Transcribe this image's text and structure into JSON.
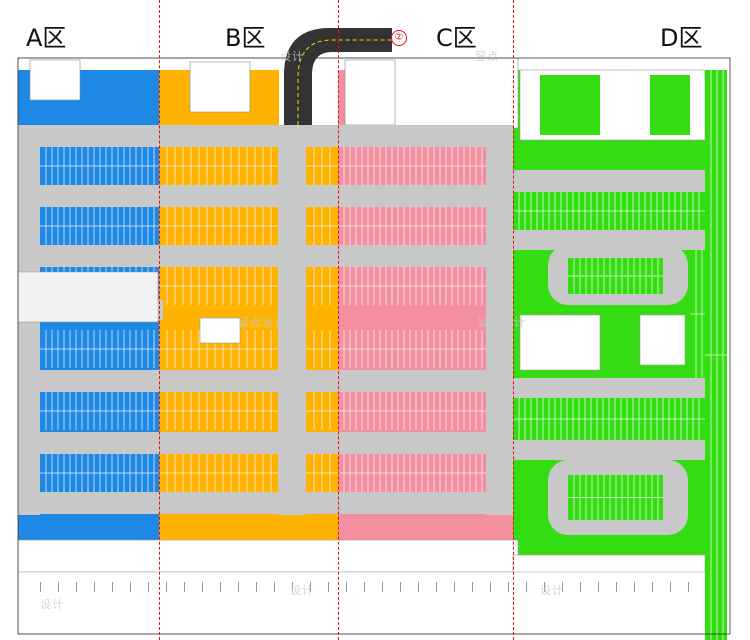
{
  "zones": [
    {
      "id": "A",
      "label": "A区",
      "color": "#1e88e5"
    },
    {
      "id": "B",
      "label": "B区",
      "color": "#ffb300"
    },
    {
      "id": "C",
      "label": "C区",
      "color": "#f48fa0"
    },
    {
      "id": "D",
      "label": "D区",
      "color": "#33dd11"
    }
  ],
  "ramp": {
    "number": "②",
    "color": "#333333"
  },
  "watermarks": [
    "留点设计",
    "设计",
    "留点",
    "设计"
  ],
  "colors": {
    "aisle": "#c8c8c8",
    "building": "#ffffff",
    "divider": "#dd1111",
    "stall_line": "#ffffff"
  }
}
